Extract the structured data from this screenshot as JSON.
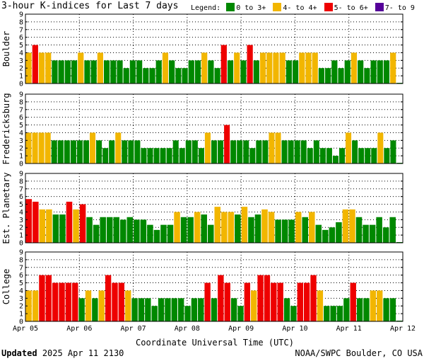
{
  "title": "3-hour K-indices for Last 7 days",
  "legend": {
    "label": "Legend:",
    "items": [
      {
        "label": "0 to 3+",
        "color": "#008800"
      },
      {
        "label": "4- to 4+",
        "color": "#f2b600"
      },
      {
        "label": "5- to 6+",
        "color": "#ee0000"
      },
      {
        "label": "7- to 9",
        "color": "#550099"
      }
    ]
  },
  "footer": {
    "updated_label": "Updated",
    "updated_value": "2025 Apr 11 2130",
    "source": "NOAA/SWPC Boulder, CO USA"
  },
  "chart_data": {
    "type": "bar",
    "xlabel": "Coordinate Universal Time (UTC)",
    "x_ticks": [
      "Apr 05",
      "Apr 06",
      "Apr 07",
      "Apr 08",
      "Apr 09",
      "Apr 10",
      "Apr 11",
      "Apr 12"
    ],
    "ylim": [
      0,
      9
    ],
    "y_ticks": [
      0,
      1,
      2,
      3,
      4,
      5,
      6,
      7,
      8,
      9
    ],
    "colors": {
      "low": "#008800",
      "moderate": "#f2b600",
      "high": "#ee0000",
      "severe": "#550099"
    },
    "thresholds": {
      "moderate": 4,
      "high": 5,
      "severe": 7
    },
    "panels": [
      {
        "name": "Boulder",
        "values": [
          4,
          5,
          4,
          4,
          3,
          3,
          3,
          3,
          4,
          3,
          3,
          4,
          3,
          3,
          3,
          2,
          3,
          3,
          2,
          2,
          3,
          4,
          3,
          2,
          2,
          3,
          3,
          4,
          3,
          2,
          5,
          3,
          4,
          3,
          5,
          3,
          4,
          4,
          4,
          4,
          3,
          3,
          4,
          4,
          4,
          2,
          2,
          3,
          2,
          3,
          4,
          3,
          2,
          3,
          3,
          3,
          4,
          0
        ]
      },
      {
        "name": "Fredericksburg",
        "values": [
          4,
          4,
          4,
          4,
          3,
          3,
          3,
          3,
          3,
          3,
          4,
          3,
          2,
          3,
          4,
          3,
          3,
          3,
          2,
          2,
          2,
          2,
          2,
          3,
          2,
          3,
          3,
          2,
          4,
          3,
          3,
          5,
          3,
          3,
          3,
          2,
          3,
          3,
          4,
          4,
          3,
          3,
          3,
          3,
          2,
          3,
          2,
          2,
          1,
          2,
          4,
          3,
          2,
          2,
          2,
          4,
          2,
          3,
          0
        ]
      },
      {
        "name": "Est. Planetary",
        "values": [
          5.67,
          5.33,
          4.33,
          4.33,
          3.67,
          3.67,
          5.33,
          4.33,
          5,
          3.33,
          2.33,
          3.33,
          3.33,
          3.33,
          3,
          3.33,
          3,
          3,
          2.33,
          1.67,
          2.33,
          2.33,
          4,
          3.33,
          3.33,
          4,
          3.67,
          2.33,
          4.67,
          4,
          4,
          3.67,
          4.67,
          3.33,
          3.67,
          4.33,
          4,
          3,
          3,
          3,
          4,
          3.33,
          4,
          2.33,
          1.67,
          2,
          2.67,
          4.33,
          4.33,
          3.33,
          2.33,
          2.33,
          3.33,
          2,
          3.33,
          0
        ]
      },
      {
        "name": "College",
        "values": [
          4,
          4,
          6,
          6,
          5,
          5,
          5,
          5,
          3,
          4,
          3,
          4,
          6,
          5,
          5,
          4,
          3,
          3,
          3,
          2,
          3,
          3,
          3,
          3,
          2,
          3,
          3,
          5,
          3,
          6,
          5,
          3,
          2,
          5,
          4,
          6,
          6,
          5,
          5,
          3,
          2,
          5,
          5,
          6,
          4,
          2,
          2,
          2,
          3,
          5,
          3,
          3,
          4,
          4,
          3,
          3,
          0
        ]
      }
    ]
  }
}
